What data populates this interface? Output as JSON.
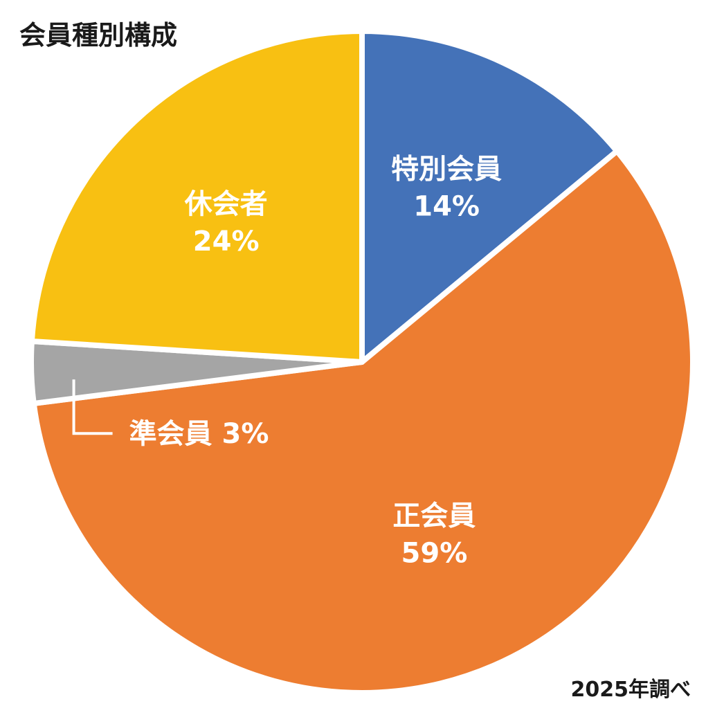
{
  "chart_data": {
    "type": "pie",
    "title": "会員種別構成",
    "note": "2025年調べ",
    "start_angle_deg": 0,
    "direction": "clockwise",
    "slices": [
      {
        "name": "特別会員",
        "value": 14,
        "value_label": "14%",
        "color": "#4472b8"
      },
      {
        "name": "正会員",
        "value": 59,
        "value_label": "59%",
        "color": "#ed7d31"
      },
      {
        "name": "準会員",
        "value": 3,
        "value_label": "3%",
        "color": "#a5a5a5"
      },
      {
        "name": "休会者",
        "value": 24,
        "value_label": "24%",
        "color": "#f8c012"
      }
    ]
  }
}
